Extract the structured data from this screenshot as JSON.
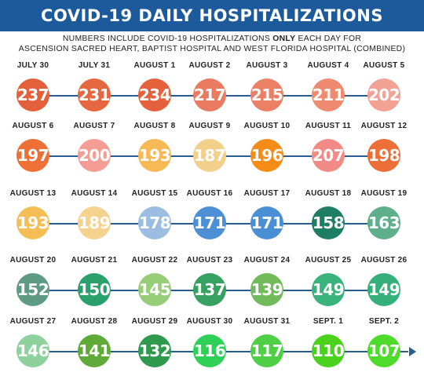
{
  "header": {
    "title": "COVID-19 DAILY HOSPITALIZATIONS"
  },
  "subtitle": {
    "line1_pre": "NUMBERS INCLUDE COVID-19 HOSPITALIZATIONS ",
    "line1_bold": "ONLY",
    "line1_post": " EACH DAY FOR",
    "line2": "ASCENSION SACRED HEART, BAPTIST HOSPITAL AND WEST FLORIDA HOSPITAL (COMBINED)"
  },
  "colors": {
    "header_bg": "#1d5a9b",
    "line": "#2a5d8f"
  },
  "rows": [
    {
      "days": [
        {
          "date": "JULY 30",
          "value": "237",
          "color": "#e4603b"
        },
        {
          "date": "JULY 31",
          "value": "231",
          "color": "#e5673f"
        },
        {
          "date": "AUGUST 1",
          "value": "234",
          "color": "#e4613c"
        },
        {
          "date": "AUGUST 2",
          "value": "217",
          "color": "#ea7b61"
        },
        {
          "date": "AUGUST 3",
          "value": "215",
          "color": "#ec8066"
        },
        {
          "date": "AUGUST 4",
          "value": "211",
          "color": "#ee8a70"
        },
        {
          "date": "AUGUST 5",
          "value": "202",
          "color": "#f3a195"
        }
      ]
    },
    {
      "days": [
        {
          "date": "AUGUST 6",
          "value": "197",
          "color": "#ee7036"
        },
        {
          "date": "AUGUST 7",
          "value": "200",
          "color": "#f59c94"
        },
        {
          "date": "AUGUST 8",
          "value": "193",
          "color": "#f6b955"
        },
        {
          "date": "AUGUST 9",
          "value": "187",
          "color": "#f2cf8a"
        },
        {
          "date": "AUGUST 10",
          "value": "196",
          "color": "#f48c17"
        },
        {
          "date": "AUGUST 11",
          "value": "207",
          "color": "#f28b85"
        },
        {
          "date": "AUGUST 12",
          "value": "198",
          "color": "#ec6f37"
        }
      ]
    },
    {
      "days": [
        {
          "date": "AUGUST 13",
          "value": "193",
          "color": "#f5bd55"
        },
        {
          "date": "AUGUST 14",
          "value": "189",
          "color": "#f5d28e"
        },
        {
          "date": "AUGUST 15",
          "value": "178",
          "color": "#9bbde0"
        },
        {
          "date": "AUGUST 16",
          "value": "171",
          "color": "#4c8fd4"
        },
        {
          "date": "AUGUST 17",
          "value": "171",
          "color": "#4a8ed5"
        },
        {
          "date": "AUGUST 18",
          "value": "158",
          "color": "#1e7e64"
        },
        {
          "date": "AUGUST 19",
          "value": "163",
          "color": "#5fae8c"
        }
      ]
    },
    {
      "days": [
        {
          "date": "AUGUST 20",
          "value": "152",
          "color": "#5f9b84"
        },
        {
          "date": "AUGUST 21",
          "value": "150",
          "color": "#2aa06a"
        },
        {
          "date": "AUGUST 22",
          "value": "145",
          "color": "#97cc79"
        },
        {
          "date": "AUGUST 23",
          "value": "137",
          "color": "#36a160"
        },
        {
          "date": "AUGUST 24",
          "value": "139",
          "color": "#72bb5c"
        },
        {
          "date": "AUGUST 25",
          "value": "149",
          "color": "#3ab27c"
        },
        {
          "date": "AUGUST 26",
          "value": "149",
          "color": "#36b07a"
        }
      ]
    },
    {
      "days": [
        {
          "date": "AUGUST 27",
          "value": "146",
          "color": "#8fd19c"
        },
        {
          "date": "AUGUST 28",
          "value": "141",
          "color": "#5faa39"
        },
        {
          "date": "AUGUST 29",
          "value": "132",
          "color": "#2f9a4d"
        },
        {
          "date": "AUGUST 30",
          "value": "116",
          "color": "#2fd058"
        },
        {
          "date": "AUGUST 31",
          "value": "117",
          "color": "#4fcf45"
        },
        {
          "date": "SEPT. 1",
          "value": "110",
          "color": "#4ad21d"
        },
        {
          "date": "SEPT. 2",
          "value": "107",
          "color": "#4fdb2c"
        }
      ]
    }
  ]
}
